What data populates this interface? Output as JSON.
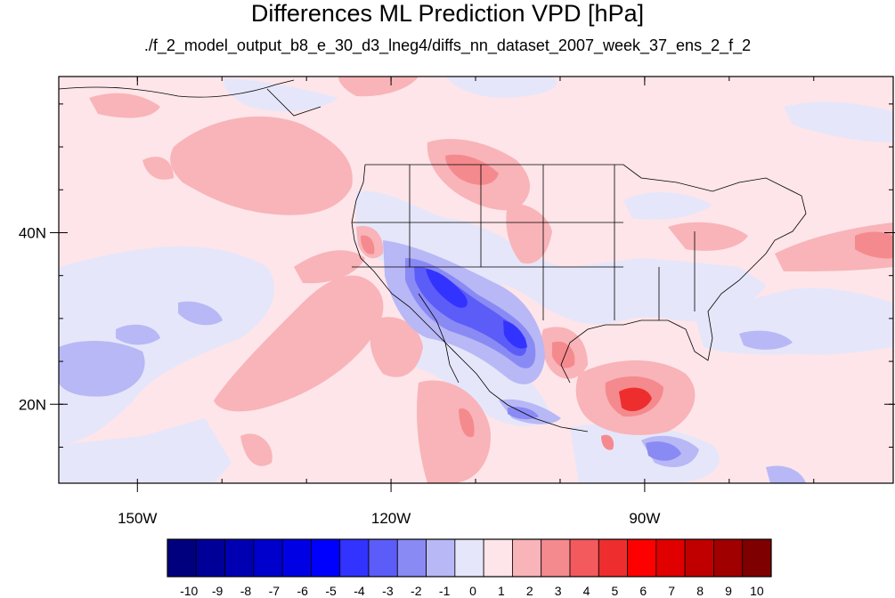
{
  "title": "Differences ML Prediction VPD [hPa]",
  "subtitle": "./f_2_model_output_b8_e_30_d3_lneg4/diffs_nn_dataset_2007_week_37_ens_2_f_2",
  "map": {
    "lon_range": [
      -159.3,
      -60.6
    ],
    "lat_range": [
      10.8,
      58.2
    ],
    "lon_ticks": [
      {
        "value": -150,
        "label": "150W"
      },
      {
        "value": -120,
        "label": "120W"
      },
      {
        "value": -90,
        "label": "90W"
      }
    ],
    "lat_ticks": [
      {
        "value": 40,
        "label": "40N"
      },
      {
        "value": 20,
        "label": "20N"
      }
    ]
  },
  "colorbar": {
    "labels": [
      "-10",
      "-9",
      "-8",
      "-7",
      "-6",
      "-5",
      "-4",
      "-3",
      "-2",
      "-1",
      "0",
      "1",
      "2",
      "3",
      "4",
      "5",
      "6",
      "7",
      "8",
      "9",
      "10"
    ],
    "colors": [
      "#00007f",
      "#000099",
      "#0000b2",
      "#0000cc",
      "#0000e5",
      "#0000ff",
      "#3333ff",
      "#5c5cf8",
      "#8a8af5",
      "#b8b8f6",
      "#e6e6fa",
      "#fde5e9",
      "#f8b4b8",
      "#f58a8e",
      "#f25a5e",
      "#ee2e2e",
      "#ff0000",
      "#e00000",
      "#c00000",
      "#a00000",
      "#7f0000"
    ]
  }
}
